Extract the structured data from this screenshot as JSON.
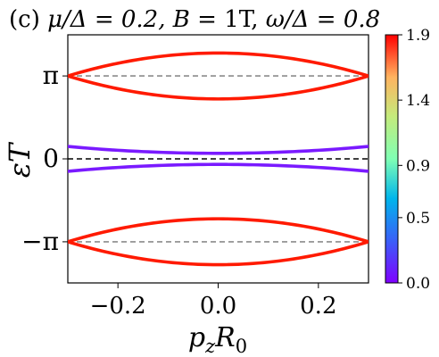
{
  "chart_data": {
    "type": "line",
    "title": "(c)  μ/Δ = 0.2, B = 1T, ω/Δ = 0.8",
    "xlabel": "p_z R_0",
    "ylabel": "εT",
    "xlim": [
      -0.3,
      0.3
    ],
    "ylim": [
      -4.7,
      4.7
    ],
    "x_ticks": [
      {
        "value": -0.2,
        "label": "−0.2"
      },
      {
        "value": 0.0,
        "label": "0.0"
      },
      {
        "value": 0.2,
        "label": "0.2"
      }
    ],
    "y_ticks": [
      {
        "value": 3.14159,
        "label": "π"
      },
      {
        "value": 0,
        "label": "0"
      },
      {
        "value": -3.14159,
        "label": "−π"
      }
    ],
    "reference_lines": [
      {
        "y": 3.14159,
        "color": "#8c8c8c",
        "style": "dashed"
      },
      {
        "y": 0,
        "color": "#000000",
        "style": "dashed"
      },
      {
        "y": -3.14159,
        "color": "#8c8c8c",
        "style": "dashed"
      }
    ],
    "series": [
      {
        "color": "#ff1a00",
        "x": [
          -0.3,
          -0.2,
          -0.1,
          0.0,
          0.1,
          0.2,
          0.3
        ],
        "y": [
          3.14,
          3.65,
          3.92,
          4.01,
          3.92,
          3.65,
          3.14
        ]
      },
      {
        "color": "#ff1a00",
        "x": [
          -0.3,
          -0.2,
          -0.1,
          0.0,
          0.1,
          0.2,
          0.3
        ],
        "y": [
          3.14,
          2.63,
          2.36,
          2.27,
          2.36,
          2.63,
          3.14
        ]
      },
      {
        "color": "#7a1aff",
        "x": [
          -0.3,
          -0.2,
          -0.1,
          0.0,
          0.1,
          0.2,
          0.3
        ],
        "y": [
          0.47,
          0.33,
          0.24,
          0.21,
          0.24,
          0.33,
          0.47
        ]
      },
      {
        "color": "#7a1aff",
        "x": [
          -0.3,
          -0.2,
          -0.1,
          0.0,
          0.1,
          0.2,
          0.3
        ],
        "y": [
          -0.47,
          -0.33,
          -0.24,
          -0.21,
          -0.24,
          -0.33,
          -0.47
        ]
      },
      {
        "color": "#ff1a00",
        "x": [
          -0.3,
          -0.2,
          -0.1,
          0.0,
          0.1,
          0.2,
          0.3
        ],
        "y": [
          -3.14,
          -2.63,
          -2.36,
          -2.27,
          -2.36,
          -2.63,
          -3.14
        ]
      },
      {
        "color": "#ff1a00",
        "x": [
          -0.3,
          -0.2,
          -0.1,
          0.0,
          0.1,
          0.2,
          0.3
        ],
        "y": [
          -3.14,
          -3.65,
          -3.92,
          -4.01,
          -3.92,
          -3.65,
          -3.14
        ]
      }
    ],
    "colorbar": {
      "min": 0.0,
      "max": 1.9,
      "ticks": [
        {
          "value": 1.9,
          "label": "1.9"
        },
        {
          "value": 1.4,
          "label": "1.4"
        },
        {
          "value": 0.9,
          "label": "0.9"
        },
        {
          "value": 0.5,
          "label": "0.5"
        },
        {
          "value": 0.0,
          "label": "0.0"
        }
      ],
      "colormap": "rainbow"
    },
    "grid": false,
    "legend": "none"
  }
}
